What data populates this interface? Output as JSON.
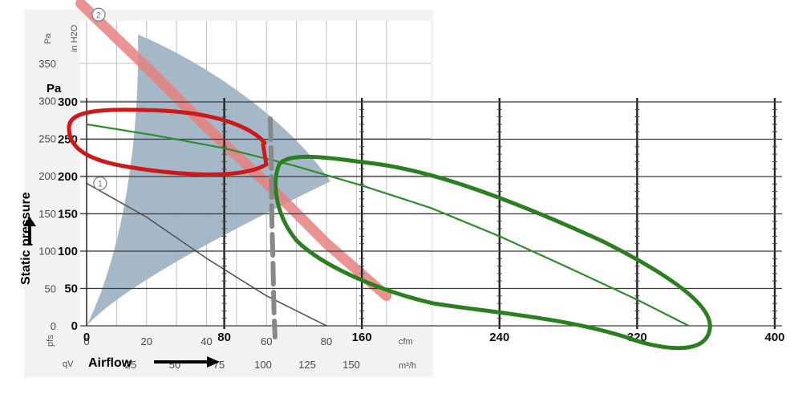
{
  "chart_data": [
    {
      "type": "line",
      "title": "",
      "x_primary": {
        "unit": "cfm",
        "ticks": [
          0,
          20,
          40,
          60,
          80
        ],
        "range": [
          0,
          100
        ]
      },
      "x_secondary": {
        "unit": "m³/h",
        "ticks": [
          25,
          50,
          75,
          100,
          125,
          150
        ]
      },
      "y_primary": {
        "unit": "Pa",
        "ticks": [
          0,
          50,
          100,
          150,
          200,
          250,
          300,
          350
        ],
        "range": [
          0,
          390
        ]
      },
      "y_secondary": {
        "unit": "in H2O"
      },
      "axis_symbols": {
        "y": "pfs",
        "x": "qV"
      },
      "operating_area": {
        "color": "#9fb4c5"
      },
      "series": [
        {
          "name": "1",
          "color": "#555555",
          "x": [
            0,
            20,
            40,
            60,
            80
          ],
          "y": [
            190,
            145,
            90,
            40,
            0
          ]
        },
        {
          "name": "2",
          "color": "#e7807f",
          "x": [
            -2,
            20,
            40,
            60,
            80,
            100
          ],
          "y": [
            430,
            345,
            265,
            190,
            110,
            40
          ]
        }
      ]
    },
    {
      "type": "line",
      "title": "",
      "xlabel": "Airflow",
      "ylabel": "Static pressure",
      "y_unit": "Pa",
      "x_ticks": [
        0,
        80,
        160,
        240,
        320,
        400
      ],
      "y_ticks": [
        0,
        50,
        100,
        150,
        200,
        250,
        300
      ],
      "xlim": [
        0,
        400
      ],
      "ylim": [
        0,
        300
      ],
      "grid": true,
      "series": [
        {
          "color": "#2e8b2e",
          "x": [
            0,
            40,
            80,
            120,
            160,
            200,
            240,
            280,
            320,
            350
          ],
          "y": [
            270,
            255,
            238,
            215,
            188,
            158,
            120,
            78,
            35,
            0
          ]
        }
      ]
    }
  ],
  "annotations": {
    "red_loop_color": "#cc1a1a",
    "green_loop_color": "#2a7f1e",
    "dashed_line_color": "#888888"
  }
}
